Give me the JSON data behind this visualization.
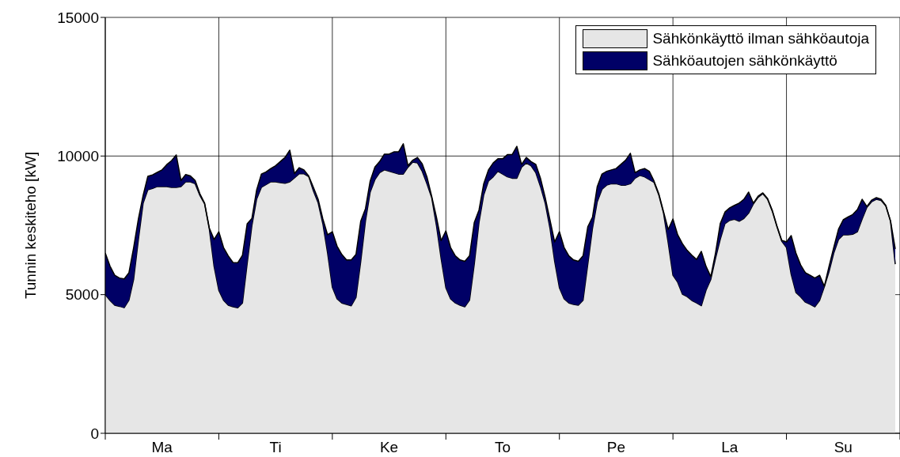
{
  "chart_data": {
    "type": "area",
    "stacked": true,
    "ylabel": "Tunnin keskiteho [kW]",
    "categories": [
      null,
      null,
      null,
      null,
      null,
      null,
      null,
      null,
      null,
      null,
      null,
      null,
      "Ma",
      null,
      null,
      null,
      null,
      null,
      null,
      null,
      null,
      null,
      null,
      null,
      null,
      null,
      null,
      null,
      null,
      null,
      null,
      null,
      null,
      null,
      null,
      null,
      "Ti",
      null,
      null,
      null,
      null,
      null,
      null,
      null,
      null,
      null,
      null,
      null,
      null,
      null,
      null,
      null,
      null,
      null,
      null,
      null,
      null,
      null,
      null,
      null,
      "Ke",
      null,
      null,
      null,
      null,
      null,
      null,
      null,
      null,
      null,
      null,
      null,
      null,
      null,
      null,
      null,
      null,
      null,
      null,
      null,
      null,
      null,
      null,
      null,
      "To",
      null,
      null,
      null,
      null,
      null,
      null,
      null,
      null,
      null,
      null,
      null,
      null,
      null,
      null,
      null,
      null,
      null,
      null,
      null,
      null,
      null,
      null,
      null,
      "Pe",
      null,
      null,
      null,
      null,
      null,
      null,
      null,
      null,
      null,
      null,
      null,
      null,
      null,
      null,
      null,
      null,
      null,
      null,
      null,
      null,
      null,
      null,
      null,
      "La",
      null,
      null,
      null,
      null,
      null,
      null,
      null,
      null,
      null,
      null,
      null,
      null,
      null,
      null,
      null,
      null,
      null,
      null,
      null,
      null,
      null,
      null,
      null,
      "Su",
      null,
      null,
      null,
      null,
      null,
      null,
      null,
      null,
      null,
      null,
      null
    ],
    "series": [
      {
        "name": "Sähkönkäyttö ilman sähköautoja",
        "color": "#e6e6e6",
        "values": [
          5000,
          4790,
          4620,
          4580,
          4530,
          4800,
          5560,
          6990,
          8300,
          8780,
          8830,
          8900,
          8900,
          8900,
          8870,
          8870,
          8900,
          9070,
          9070,
          9000,
          8580,
          8270,
          7360,
          6020,
          5160,
          4800,
          4620,
          4560,
          4530,
          4700,
          6130,
          7500,
          8450,
          8870,
          8970,
          9070,
          9070,
          9040,
          9020,
          9070,
          9210,
          9360,
          9360,
          9260,
          8740,
          8310,
          7550,
          6500,
          5270,
          4850,
          4700,
          4650,
          4600,
          4900,
          6200,
          7650,
          8700,
          9150,
          9400,
          9500,
          9450,
          9400,
          9350,
          9350,
          9600,
          9780,
          9750,
          9450,
          9000,
          8500,
          7500,
          6300,
          5250,
          4850,
          4700,
          4620,
          4560,
          4800,
          6100,
          7600,
          8600,
          9100,
          9250,
          9450,
          9350,
          9250,
          9200,
          9200,
          9600,
          9750,
          9650,
          9400,
          8900,
          8300,
          7400,
          6200,
          5250,
          4850,
          4700,
          4650,
          4620,
          4800,
          6100,
          7400,
          8350,
          8800,
          8950,
          9000,
          9000,
          8950,
          8950,
          9000,
          9200,
          9300,
          9250,
          9150,
          9050,
          8600,
          7950,
          6870,
          5700,
          5450,
          5020,
          4930,
          4790,
          4700,
          4600,
          5160,
          5550,
          6310,
          6990,
          7560,
          7680,
          7720,
          7650,
          7750,
          7940,
          8270,
          8510,
          8640,
          8440,
          8010,
          7440,
          6930,
          6700,
          5730,
          5080,
          4920,
          4730,
          4650,
          4560,
          4790,
          5280,
          5830,
          6500,
          6990,
          7160,
          7160,
          7180,
          7270,
          7730,
          8150,
          8350,
          8440,
          8400,
          8200,
          7640,
          6100
        ]
      },
      {
        "name": "Sähköautojen sähkönkäyttö",
        "color": "#000066",
        "values": [
          1500,
          1240,
          1080,
          1020,
          1040,
          990,
          1140,
          740,
          280,
          490,
          490,
          510,
          600,
          790,
          960,
          1170,
          220,
          260,
          210,
          120,
          60,
          30,
          40,
          970,
          2110,
          1900,
          1780,
          1600,
          1620,
          1720,
          1430,
          250,
          330,
          480,
          460,
          480,
          580,
          760,
          930,
          1140,
          160,
          220,
          140,
          20,
          130,
          130,
          180,
          660,
          2000,
          1900,
          1750,
          1600,
          1650,
          1550,
          1450,
          450,
          400,
          450,
          400,
          570,
          620,
          750,
          800,
          1090,
          50,
          70,
          200,
          270,
          250,
          50,
          300,
          650,
          2050,
          1850,
          1700,
          1630,
          1640,
          1600,
          1500,
          450,
          400,
          400,
          500,
          450,
          550,
          800,
          850,
          1150,
          100,
          200,
          150,
          300,
          300,
          200,
          300,
          700,
          2020,
          1850,
          1700,
          1600,
          1580,
          1600,
          1350,
          400,
          550,
          550,
          500,
          500,
          550,
          750,
          900,
          1100,
          200,
          200,
          300,
          300,
          50,
          50,
          50,
          480,
          2030,
          1710,
          1820,
          1670,
          1630,
          1570,
          1960,
          860,
          100,
          190,
          570,
          420,
          450,
          500,
          650,
          690,
          760,
          30,
          40,
          30,
          30,
          30,
          30,
          30,
          200,
          1400,
          1420,
          1150,
          1060,
          1050,
          1040,
          910,
          20,
          190,
          200,
          370,
          540,
          640,
          710,
          800,
          710,
          30,
          60,
          60,
          40,
          20,
          20,
          550
        ]
      }
    ],
    "ylim": [
      0,
      15000
    ],
    "yticks": [
      0,
      5000,
      10000,
      15000
    ],
    "grid": true,
    "legend": "top right",
    "line_style": "solid",
    "marker": "none"
  }
}
